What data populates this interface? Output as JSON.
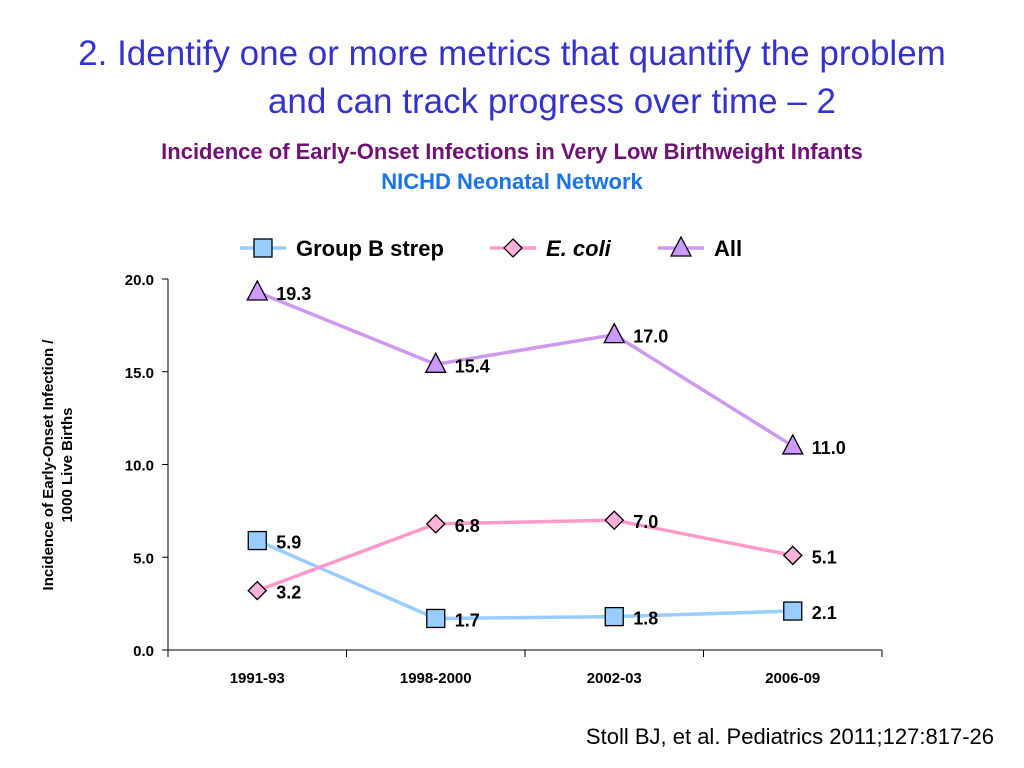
{
  "slide": {
    "heading_line1": "2. Identify one or more metrics that quantify the problem",
    "heading_line2": "and can track progress over time – 2",
    "subtitle_line1": "Incidence of Early-Onset Infections in Very Low Birthweight Infants",
    "subtitle_line2": "NICHD Neonatal Network",
    "citation": "Stoll BJ, et al. Pediatrics 2011;127:817-26"
  },
  "colors": {
    "heading": "#3333cc",
    "subtitle_line1": "#6e1173",
    "subtitle_line2": "#1a73e8"
  },
  "chart_data": {
    "type": "line",
    "categories": [
      "1991-93",
      "1998-2000",
      "2002-03",
      "2006-09"
    ],
    "ylabel_line1": "Incidence of Early-Onset Infection /",
    "ylabel_line2": "1000 Live Births",
    "ylim": [
      0,
      20
    ],
    "yticks": [
      "0.0",
      "5.0",
      "10.0",
      "15.0",
      "20.0"
    ],
    "grid": false,
    "legend_position": "top",
    "series": [
      {
        "name": "Group B strep",
        "values": [
          5.9,
          1.7,
          1.8,
          2.1
        ],
        "labels": [
          "5.9",
          "1.7",
          "1.8",
          "2.1"
        ],
        "marker": "square",
        "line_color": "#99ccff",
        "fill": "#99ccff"
      },
      {
        "name": "E. coli",
        "values": [
          3.2,
          6.8,
          7.0,
          5.1
        ],
        "labels": [
          "3.2",
          "6.8",
          "7.0",
          "5.1"
        ],
        "marker": "diamond",
        "line_color": "#ff99cc",
        "fill": "#ffb3d9",
        "italic": true
      },
      {
        "name": "All",
        "values": [
          19.3,
          15.4,
          17.0,
          11.0
        ],
        "labels": [
          "19.3",
          "15.4",
          "17.0",
          "11.0"
        ],
        "marker": "triangle",
        "line_color": "#cc99ee",
        "fill": "#cc99ff"
      }
    ]
  }
}
